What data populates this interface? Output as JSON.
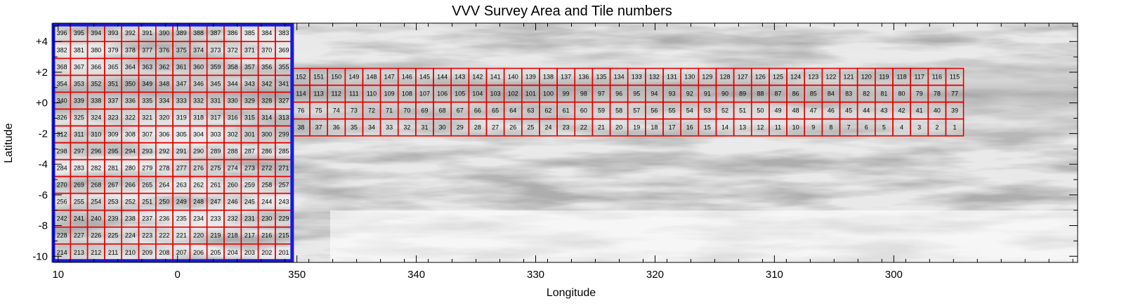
{
  "chart_data": {
    "type": "scatter",
    "title": "VVV Survey Area and Tile numbers",
    "xlabel": "Longitude",
    "ylabel": "Latitude",
    "xlim": [
      10.4,
      284.6
    ],
    "ylim": [
      -10.4,
      5.2
    ],
    "x_axis_reversed": true,
    "x_ticks": [
      {
        "value": 10,
        "label": "10"
      },
      {
        "value": 0,
        "label": "0"
      },
      {
        "value": 350,
        "label": "350"
      },
      {
        "value": 340,
        "label": "340"
      },
      {
        "value": 330,
        "label": "330"
      },
      {
        "value": 320,
        "label": "320"
      },
      {
        "value": 310,
        "label": "310"
      },
      {
        "value": 300,
        "label": "300"
      }
    ],
    "y_ticks": [
      {
        "value": 4,
        "label": "+4"
      },
      {
        "value": 2,
        "label": "+2"
      },
      {
        "value": 0,
        "label": "+0"
      },
      {
        "value": -2,
        "label": "-2"
      },
      {
        "value": -4,
        "label": "-4"
      },
      {
        "value": -6,
        "label": "-6"
      },
      {
        "value": -8,
        "label": "-8"
      },
      {
        "value": -10,
        "label": "-10"
      }
    ],
    "colors": {
      "tile_edge": "#e60000",
      "bulge_outline": "#1a1ad6",
      "background": "#ffffff"
    },
    "regions": [
      {
        "name": "bulge",
        "l_range": [
          10.4,
          -9.6
        ],
        "b_range": [
          -10.3,
          5.1
        ]
      },
      {
        "name": "disk",
        "l_range": [
          350.4,
          295.2
        ],
        "b_range": [
          -2.25,
          2.25
        ]
      }
    ],
    "tiles": {
      "bulge": {
        "rows": 14,
        "cols": 14,
        "l_start": 10.4,
        "l_step": 1.43,
        "b_start": 5.1,
        "b_step": 1.1,
        "numbers": [
          [
            396,
            395,
            394,
            393,
            392,
            391,
            390,
            389,
            388,
            387,
            386,
            385,
            384,
            383
          ],
          [
            382,
            381,
            380,
            379,
            378,
            377,
            376,
            375,
            374,
            373,
            372,
            371,
            370,
            369
          ],
          [
            368,
            367,
            366,
            365,
            364,
            363,
            362,
            361,
            360,
            359,
            358,
            357,
            356,
            355
          ],
          [
            354,
            353,
            352,
            351,
            350,
            349,
            348,
            347,
            346,
            345,
            344,
            343,
            342,
            341
          ],
          [
            340,
            339,
            338,
            337,
            336,
            335,
            334,
            333,
            332,
            331,
            330,
            329,
            328,
            327
          ],
          [
            326,
            325,
            324,
            323,
            322,
            321,
            320,
            319,
            318,
            317,
            316,
            315,
            314,
            313
          ],
          [
            312,
            311,
            310,
            309,
            308,
            307,
            306,
            305,
            304,
            303,
            302,
            301,
            300,
            299
          ],
          [
            298,
            297,
            296,
            295,
            294,
            293,
            292,
            291,
            290,
            289,
            288,
            287,
            286,
            285
          ],
          [
            284,
            283,
            282,
            281,
            280,
            279,
            278,
            277,
            276,
            275,
            274,
            273,
            272,
            271
          ],
          [
            270,
            269,
            268,
            267,
            266,
            265,
            264,
            263,
            262,
            261,
            260,
            259,
            258,
            257
          ],
          [
            256,
            255,
            254,
            253,
            252,
            251,
            250,
            249,
            248,
            247,
            246,
            245,
            244,
            243
          ],
          [
            242,
            241,
            240,
            239,
            238,
            237,
            236,
            235,
            234,
            233,
            232,
            231,
            230,
            229
          ],
          [
            228,
            227,
            226,
            225,
            224,
            223,
            222,
            221,
            220,
            219,
            218,
            217,
            216,
            215
          ],
          [
            214,
            213,
            212,
            211,
            210,
            209,
            208,
            207,
            206,
            205,
            204,
            203,
            202,
            201
          ]
        ]
      },
      "disk": {
        "rows": 4,
        "cols": 38,
        "l_start": 350.4,
        "l_step": 1.48,
        "b_start": 2.25,
        "b_step": 1.1,
        "numbers": [
          [
            152,
            151,
            150,
            149,
            148,
            147,
            146,
            145,
            144,
            143,
            142,
            141,
            140,
            139,
            138,
            137,
            136,
            135,
            134,
            133,
            132,
            131,
            130,
            129,
            128,
            127,
            126,
            125,
            124,
            123,
            122,
            121,
            120,
            119,
            118,
            117,
            116,
            115
          ],
          [
            114,
            113,
            112,
            111,
            110,
            109,
            108,
            107,
            106,
            105,
            104,
            103,
            102,
            101,
            100,
            99,
            98,
            97,
            96,
            95,
            94,
            93,
            92,
            91,
            90,
            89,
            88,
            87,
            86,
            85,
            84,
            83,
            82,
            81,
            80,
            79,
            78,
            77
          ],
          [
            76,
            75,
            74,
            73,
            72,
            71,
            70,
            69,
            68,
            67,
            66,
            65,
            64,
            63,
            62,
            61,
            60,
            59,
            58,
            57,
            56,
            55,
            54,
            53,
            52,
            51,
            50,
            49,
            48,
            47,
            46,
            45,
            44,
            43,
            42,
            41,
            40,
            39
          ],
          [
            38,
            37,
            36,
            35,
            34,
            33,
            32,
            31,
            30,
            29,
            28,
            27,
            26,
            25,
            24,
            23,
            22,
            21,
            20,
            19,
            18,
            17,
            16,
            15,
            14,
            13,
            12,
            11,
            10,
            9,
            8,
            7,
            6,
            5,
            4,
            3,
            2,
            1
          ]
        ]
      }
    }
  }
}
